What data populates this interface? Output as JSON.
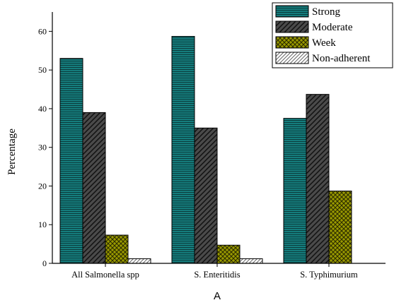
{
  "chart_data": {
    "type": "bar",
    "title": "",
    "xlabel": "",
    "ylabel": "Percentage",
    "panel_label": "A",
    "categories": [
      "All Salmonella spp",
      "S. Enteritidis",
      "S. Typhimurium"
    ],
    "ylim": [
      0,
      65
    ],
    "yticks": [
      0,
      10,
      20,
      30,
      40,
      50,
      60
    ],
    "grid": false,
    "legend_position": "top-right",
    "series": [
      {
        "name": "Strong",
        "values": [
          53.0,
          58.7,
          37.5
        ],
        "color": "#157d7d",
        "pattern": "horizontal-lines"
      },
      {
        "name": "Moderate",
        "values": [
          39.0,
          35.0,
          43.7
        ],
        "color": "#444444",
        "pattern": "diagonal-lines"
      },
      {
        "name": "Week",
        "values": [
          7.3,
          4.7,
          18.7
        ],
        "color": "#8c8c00",
        "pattern": "crosshatch"
      },
      {
        "name": "Non-adherent",
        "values": [
          1.2,
          1.2,
          0
        ],
        "color": "#bdbdbd",
        "pattern": "light-diagonal"
      }
    ]
  }
}
